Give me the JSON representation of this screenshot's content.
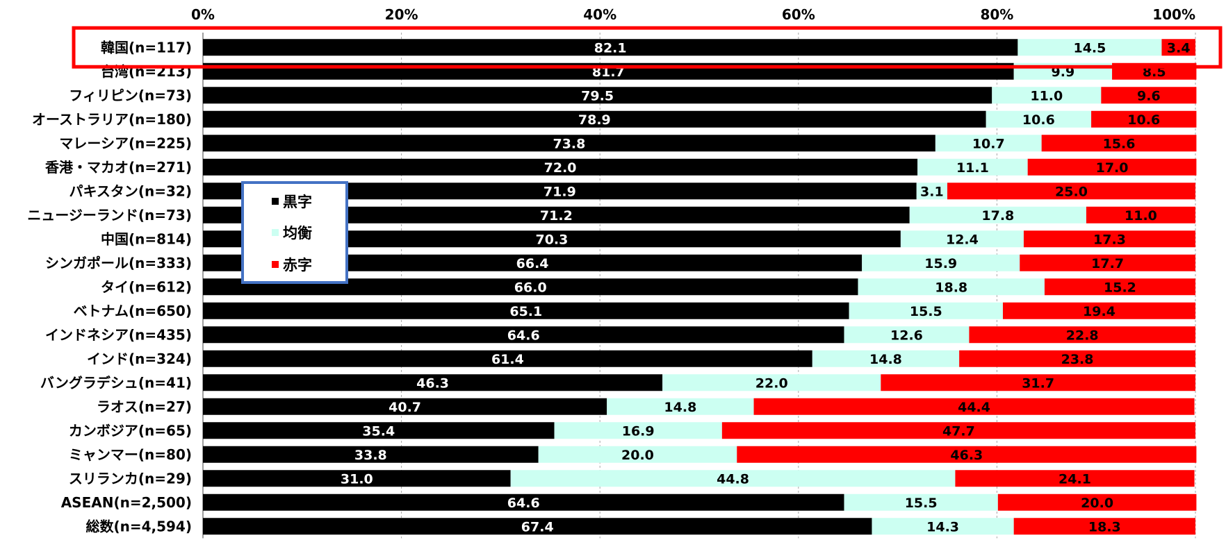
{
  "chart_data": {
    "type": "bar",
    "orientation": "horizontal",
    "stacked": "percent",
    "categories": [
      "韓国(n=117)",
      "台湾(n=213)",
      "フィリピン(n=73)",
      "オーストラリア(n=180)",
      "マレーシア(n=225)",
      "香港・マカオ(n=271)",
      "パキスタン(n=32)",
      "ニュージーランド(n=73)",
      "中国(n=814)",
      "シンガポール(n=333)",
      "タイ(n=612)",
      "ベトナム(n=650)",
      "インドネシア(n=435)",
      "インド(n=324)",
      "バングラデシュ(n=41)",
      "ラオス(n=27)",
      "カンボジア(n=65)",
      "ミャンマー(n=80)",
      "スリランカ(n=29)",
      "ASEAN(n=2,500)",
      "総数(n=4,594)"
    ],
    "series": [
      {
        "name": "黒字",
        "color": "#000000",
        "label_color": "#ffffff",
        "values": [
          82.1,
          81.7,
          79.5,
          78.9,
          73.8,
          72.0,
          71.9,
          71.2,
          70.3,
          66.4,
          66.0,
          65.1,
          64.6,
          61.4,
          46.3,
          40.7,
          35.4,
          33.8,
          31.0,
          64.6,
          67.4
        ],
        "labels": [
          "82.1",
          "81.7",
          "79.5",
          "78.9",
          "73.8",
          "72.0",
          "71.9",
          "71.2",
          "70.3",
          "66.4",
          "66.0",
          "65.1",
          "64.6",
          "61.4",
          "46.3",
          "40.7",
          "35.4",
          "33.8",
          "31.0",
          "64.6",
          "67.4"
        ]
      },
      {
        "name": "均衡",
        "color": "#ccfff2",
        "label_color": "#000000",
        "values": [
          14.5,
          9.9,
          11.0,
          10.6,
          10.7,
          11.1,
          3.1,
          17.8,
          12.4,
          15.9,
          18.8,
          15.5,
          12.6,
          14.8,
          22.0,
          14.8,
          16.9,
          20.0,
          44.8,
          15.5,
          14.3
        ],
        "labels": [
          "14.5",
          "9.9",
          "11.0",
          "10.6",
          "10.7",
          "11.1",
          "3.1",
          "17.8",
          "12.4",
          "15.9",
          "18.8",
          "15.5",
          "12.6",
          "14.8",
          "22.0",
          "14.8",
          "16.9",
          "20.0",
          "44.8",
          "15.5",
          "14.3"
        ]
      },
      {
        "name": "赤字",
        "color": "#ff0000",
        "label_color": "#000000",
        "values": [
          3.4,
          8.5,
          9.6,
          10.6,
          15.6,
          17.0,
          25.0,
          11.0,
          17.3,
          17.7,
          15.2,
          19.4,
          22.8,
          23.8,
          31.7,
          44.4,
          47.7,
          46.3,
          24.1,
          20.0,
          18.3
        ],
        "labels": [
          "3.4",
          "8.5",
          "9.6",
          "10.6",
          "15.6",
          "17.0",
          "25.0",
          "11.0",
          "17.3",
          "17.7",
          "15.2",
          "19.4",
          "22.8",
          "23.8",
          "31.7",
          "44.4",
          "47.7",
          "46.3",
          "24.1",
          "20.0",
          "18.3"
        ]
      }
    ],
    "xlim": [
      0,
      100
    ],
    "x_ticks": [
      "0%",
      "20%",
      "40%",
      "60%",
      "80%",
      "100%"
    ],
    "x_axis_position": "top",
    "grid": true,
    "legend_position": "left-center",
    "highlighted_category": "韓国(n=117)",
    "highlight_color": "#ff0000",
    "title": "",
    "xlabel": "",
    "ylabel": ""
  }
}
